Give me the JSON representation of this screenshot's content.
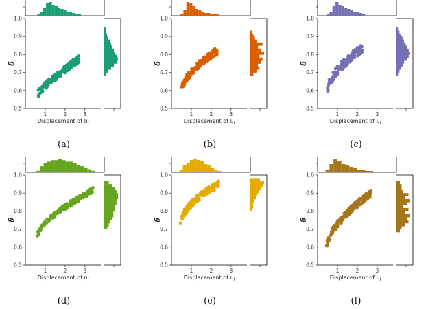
{
  "figure": {
    "ylabel_symbol": "δ̄",
    "xlabel_prefix": "Displacement of ",
    "y_ticks": [
      "0.5",
      "0.6",
      "0.7",
      "0.8",
      "0.9",
      "1.0"
    ],
    "x_ticks": [
      "1",
      "2",
      "3"
    ]
  },
  "chart_data": [
    {
      "type": "scatter",
      "caption": "(a)",
      "xlabel_var": "u",
      "xlabel_sub": "l",
      "color": "#1b9e77",
      "xlim": [
        0,
        3.8
      ],
      "ylim": [
        0.5,
        1.0
      ],
      "curve": {
        "x0": 0.65,
        "x1": 2.7,
        "y0": 0.585,
        "y1": 0.775,
        "spread": 0.02,
        "power": 0.85
      },
      "marg_x": [
        1,
        3,
        6,
        9,
        10,
        8,
        7,
        6,
        5,
        4,
        3,
        3,
        2,
        1,
        1
      ],
      "marg_y": [
        0,
        0,
        0,
        0,
        0,
        0,
        0,
        0,
        0,
        0,
        0,
        1,
        3,
        5,
        7,
        9,
        10,
        9,
        8,
        7,
        6,
        5,
        4,
        3,
        2,
        1,
        1,
        0,
        0,
        0
      ]
    },
    {
      "type": "scatter",
      "caption": "(b)",
      "xlabel_var": "u",
      "xlabel_sub": "l",
      "color": "#d95f02",
      "xlim": [
        0,
        3.8
      ],
      "ylim": [
        0.5,
        1.0
      ],
      "curve": {
        "x0": 0.5,
        "x1": 2.3,
        "y0": 0.6,
        "y1": 0.82,
        "spread": 0.02,
        "power": 0.6
      },
      "marg_x": [
        1,
        4,
        10,
        9,
        7,
        5,
        4,
        3,
        2,
        2,
        1,
        1,
        1
      ],
      "marg_y": [
        0,
        0,
        0,
        0,
        0,
        0,
        0,
        0,
        0,
        0,
        0,
        2,
        4,
        6,
        5,
        7,
        8,
        6,
        9,
        7,
        5,
        8,
        4,
        3,
        2,
        1,
        0,
        0,
        0,
        0
      ]
    },
    {
      "type": "scatter",
      "caption": "(c)",
      "xlabel_var": "u",
      "xlabel_sub": "l",
      "color": "#7570b3",
      "xlim": [
        0,
        3.8
      ],
      "ylim": [
        0.5,
        1.0
      ],
      "curve": {
        "x0": 0.5,
        "x1": 2.3,
        "y0": 0.6,
        "y1": 0.84,
        "spread": 0.025,
        "power": 0.6
      },
      "marg_x": [
        1,
        3,
        7,
        10,
        8,
        7,
        6,
        5,
        4,
        3,
        3,
        2,
        1
      ],
      "marg_y": [
        0,
        0,
        0,
        0,
        0,
        0,
        0,
        0,
        0,
        0,
        0,
        1,
        2,
        3,
        4,
        5,
        7,
        8,
        9,
        8,
        7,
        6,
        5,
        4,
        3,
        2,
        1,
        0,
        0,
        0
      ]
    },
    {
      "type": "scatter",
      "caption": "(d)",
      "xlabel_var": "u",
      "xlabel_sub": "l",
      "color": "#66a61e",
      "xlim": [
        0,
        3.8
      ],
      "ylim": [
        0.5,
        1.0
      ],
      "curve": {
        "x0": 0.6,
        "x1": 3.4,
        "y0": 0.66,
        "y1": 0.915,
        "spread": 0.015,
        "power": 0.65
      },
      "marg_x": [
        1,
        4,
        6,
        7,
        8,
        8,
        9,
        8,
        7,
        7,
        6,
        5,
        4,
        3,
        2,
        1
      ],
      "marg_y": [
        0,
        0,
        0,
        0,
        0,
        0,
        0,
        0,
        0,
        0,
        0,
        0,
        2,
        3,
        4,
        5,
        6,
        6,
        7,
        7,
        8,
        8,
        9,
        9,
        8,
        7,
        5,
        3,
        0,
        0
      ]
    },
    {
      "type": "scatter",
      "caption": "(e)",
      "xlabel_var": "u",
      "xlabel_sub": "l",
      "color": "#e6ab02",
      "xlim": [
        0,
        3.8
      ],
      "ylim": [
        0.5,
        1.0
      ],
      "curve": {
        "x0": 0.45,
        "x1": 2.4,
        "y0": 0.73,
        "y1": 0.95,
        "spread": 0.02,
        "power": 0.55
      },
      "marg_x": [
        2,
        5,
        7,
        9,
        10,
        9,
        8,
        6,
        5,
        3,
        2,
        1
      ],
      "marg_y": [
        0,
        0,
        0,
        0,
        0,
        0,
        0,
        0,
        0,
        0,
        0,
        0,
        0,
        0,
        0,
        0,
        0,
        0,
        1,
        2,
        2,
        3,
        4,
        5,
        6,
        8,
        9,
        10,
        7,
        0
      ]
    },
    {
      "type": "scatter",
      "caption": "(f)",
      "xlabel_var": "u",
      "xlabel_sub": "l",
      "color": "#a6761d",
      "xlim": [
        0,
        3.8
      ],
      "ylim": [
        0.5,
        1.0
      ],
      "curve": {
        "x0": 0.45,
        "x1": 2.7,
        "y0": 0.6,
        "y1": 0.9,
        "spread": 0.02,
        "power": 0.6
      },
      "marg_x": [
        2,
        6,
        10,
        8,
        6,
        5,
        4,
        3,
        2,
        2,
        1,
        1
      ],
      "marg_y": [
        0,
        0,
        0,
        0,
        0,
        0,
        0,
        0,
        0,
        0,
        0,
        2,
        3,
        5,
        7,
        6,
        8,
        5,
        7,
        4,
        6,
        8,
        5,
        7,
        4,
        3,
        3,
        2,
        0,
        0
      ]
    }
  ]
}
